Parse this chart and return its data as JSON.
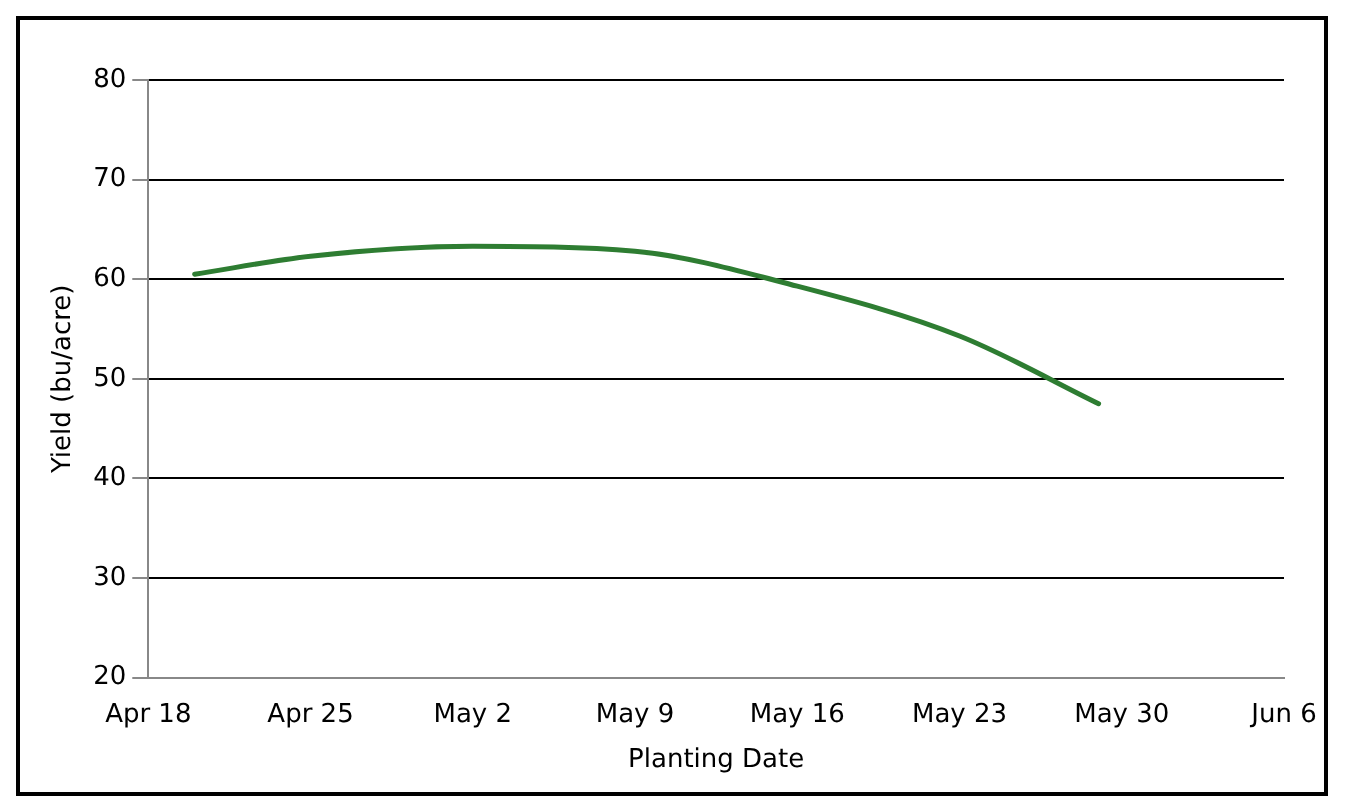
{
  "chart_data": {
    "type": "line",
    "xlabel": "Planting Date",
    "ylabel": "Yield (bu/acre)",
    "x": [
      "--04-20",
      "--04-25",
      "--05-02",
      "--05-09",
      "--05-16",
      "--05-23",
      "--05-29"
    ],
    "series": [
      {
        "color": "#2e7d32",
        "values": [
          60.5,
          62.3,
          63.3,
          62.8,
          59.3,
          54.3,
          47.5
        ]
      }
    ],
    "xlim": [
      "--04-18",
      "--06-06"
    ],
    "xticks": [
      {
        "value": "--04-18",
        "label": "Apr 18"
      },
      {
        "value": "--04-25",
        "label": "Apr 25"
      },
      {
        "value": "--05-02",
        "label": "May 2"
      },
      {
        "value": "--05-09",
        "label": "May 9"
      },
      {
        "value": "--05-16",
        "label": "May 16"
      },
      {
        "value": "--05-23",
        "label": "May 23"
      },
      {
        "value": "--05-30",
        "label": "May 30"
      },
      {
        "value": "--06-06",
        "label": "Jun 6"
      }
    ],
    "ylim": [
      20,
      80
    ],
    "yticks": [
      20,
      30,
      40,
      50,
      60,
      70,
      80
    ],
    "grid": "y",
    "legend": false,
    "marker": "none",
    "line_style": "solid"
  }
}
